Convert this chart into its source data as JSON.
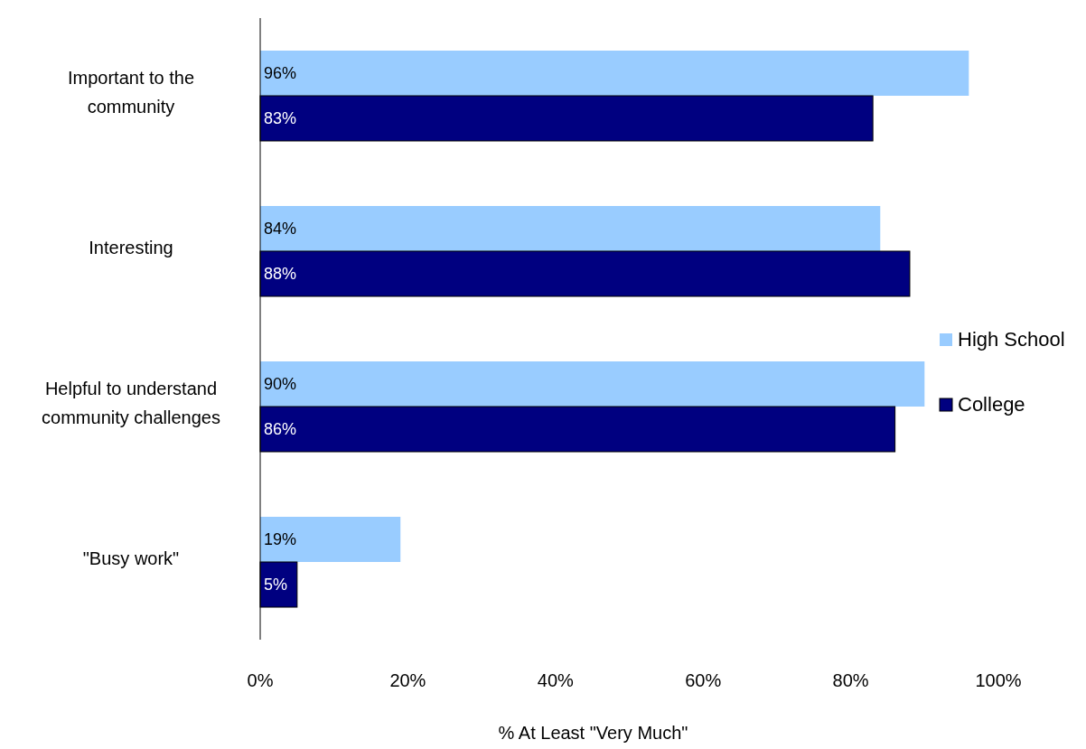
{
  "chart_data": {
    "type": "bar",
    "orientation": "horizontal",
    "xlabel": "% At Least \"Very Much\"",
    "categories": [
      "Important to the community",
      "Interesting",
      "Helpful to understand community challenges",
      "\"Busy work\""
    ],
    "series": [
      {
        "name": "High School",
        "color": "#99ccff",
        "values": [
          96,
          84,
          90,
          19
        ],
        "value_labels": [
          "96%",
          "84%",
          "90%",
          "19%"
        ]
      },
      {
        "name": "College",
        "color": "#000080",
        "values": [
          83,
          88,
          86,
          5
        ],
        "value_labels": [
          "83%",
          "88%",
          "86%",
          "5%"
        ]
      }
    ],
    "xlim": [
      0,
      100
    ],
    "xticks": [
      {
        "value": 0,
        "label": "0%"
      },
      {
        "value": 20,
        "label": "20%"
      },
      {
        "value": 40,
        "label": "40%"
      },
      {
        "value": 60,
        "label": "60%"
      },
      {
        "value": 80,
        "label": "80%"
      },
      {
        "value": 100,
        "label": "100%"
      }
    ],
    "grid": false,
    "legend": "right"
  }
}
